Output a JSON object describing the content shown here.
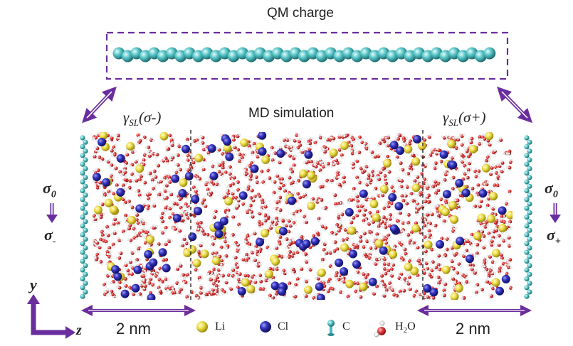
{
  "qm_title": "QM charge",
  "md_title": "MD simulation",
  "gamma_left": {
    "base": "γ",
    "sub": "SL",
    "arg": "(σ-)"
  },
  "gamma_right": {
    "base": "γ",
    "sub": "SL",
    "arg": "(σ+)"
  },
  "left_sigma_top": "σ0",
  "left_sigma_bottom": "σ-",
  "right_sigma_top": "σ0",
  "right_sigma_bottom": "σ+",
  "axis": {
    "y": "y",
    "z": "z"
  },
  "scale_left": "2 nm",
  "scale_right": "2 nm",
  "legend": [
    {
      "label": "Li",
      "icon": "li-atom-icon",
      "color": "#e8d84a"
    },
    {
      "label": "Cl",
      "icon": "cl-atom-icon",
      "color": "#3b3bb8"
    },
    {
      "label": "C",
      "icon": "c-atom-icon",
      "color": "#4ab6b8"
    },
    {
      "label": "H2O",
      "icon": "water-molecule-icon",
      "color": "#d63a3a"
    }
  ],
  "colors": {
    "accent_purple": "#6a2d9e",
    "carbon": "#4ab6b8",
    "lithium": "#e8d84a",
    "chlorine": "#3b3bb8",
    "oxygen": "#d63a3a",
    "hydrogen": "#f2f2f2"
  }
}
